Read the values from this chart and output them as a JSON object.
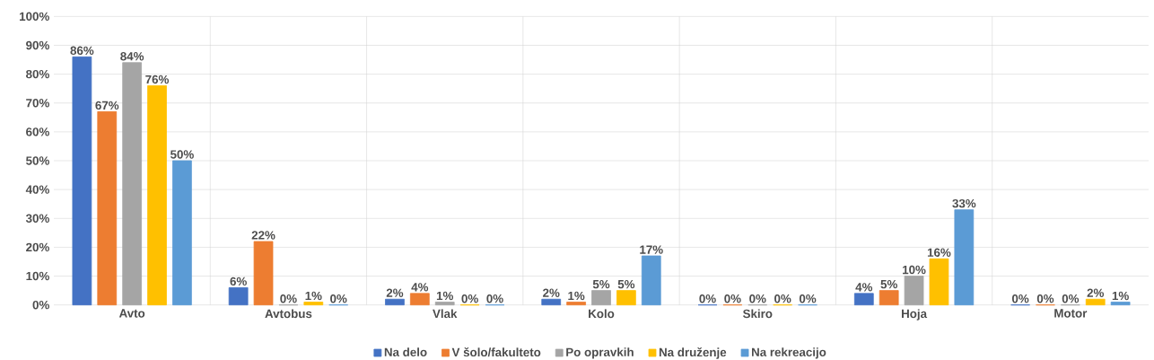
{
  "chart_data": {
    "type": "bar",
    "categories": [
      "Avto",
      "Avtobus",
      "Vlak",
      "Kolo",
      "Skiro",
      "Hoja",
      "Motor"
    ],
    "series": [
      {
        "name": "Na delo",
        "color": "#4472c4",
        "values": [
          86,
          6,
          2,
          2,
          0,
          4,
          0
        ],
        "value_labels": [
          "86%",
          "6%",
          "2%",
          "2%",
          "0%",
          "4%",
          "0%"
        ]
      },
      {
        "name": "V šolo/fakulteto",
        "color": "#ed7d31",
        "values": [
          67,
          22,
          4,
          1,
          0,
          5,
          0
        ],
        "value_labels": [
          "67%",
          "22%",
          "4%",
          "1%",
          "0%",
          "5%",
          "0%"
        ]
      },
      {
        "name": "Po opravkih",
        "color": "#a5a5a5",
        "values": [
          84,
          0,
          1,
          5,
          0,
          10,
          0
        ],
        "value_labels": [
          "84%",
          "0%",
          "1%",
          "5%",
          "0%",
          "10%",
          "0%"
        ]
      },
      {
        "name": "Na druženje",
        "color": "#ffc000",
        "values": [
          76,
          1,
          0,
          5,
          0,
          16,
          2
        ],
        "value_labels": [
          "76%",
          "1%",
          "0%",
          "5%",
          "0%",
          "16%",
          "2%"
        ]
      },
      {
        "name": "Na rekreacijo",
        "color": "#5b9bd5",
        "values": [
          50,
          0,
          0,
          17,
          0,
          33,
          1
        ],
        "value_labels": [
          "50%",
          "0%",
          "0%",
          "17%",
          "0%",
          "33%",
          "1%"
        ]
      }
    ],
    "ylim": [
      0,
      100
    ],
    "yticks": [
      {
        "value": 0,
        "label": "0%"
      },
      {
        "value": 10,
        "label": "10%"
      },
      {
        "value": 20,
        "label": "20%"
      },
      {
        "value": 30,
        "label": "30%"
      },
      {
        "value": 40,
        "label": "40%"
      },
      {
        "value": 50,
        "label": "50%"
      },
      {
        "value": 60,
        "label": "60%"
      },
      {
        "value": 70,
        "label": "70%"
      },
      {
        "value": 80,
        "label": "80%"
      },
      {
        "value": 90,
        "label": "90%"
      },
      {
        "value": 100,
        "label": "100%"
      }
    ],
    "grid": "y",
    "legend": "bottom"
  }
}
